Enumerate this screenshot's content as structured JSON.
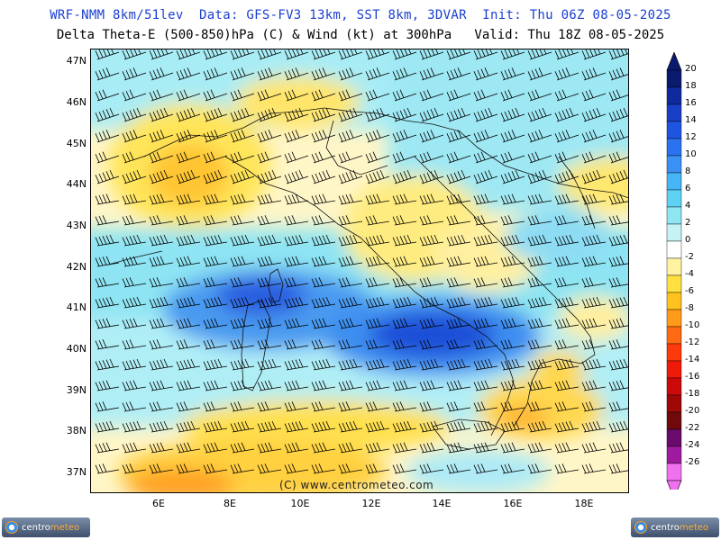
{
  "header": {
    "line1": "WRF-NMM 8km/51lev  Data: GFS-FV3 13km, SST 8km, 3DVAR  Init: Thu 06Z 08-05-2025",
    "line2": "Delta Theta-E (500-850)hPa (C) & Wind (kt) at 300hPa   Valid: Thu 18Z 08-05-2025"
  },
  "map": {
    "lat_labels": [
      "47N",
      "46N",
      "45N",
      "44N",
      "43N",
      "42N",
      "41N",
      "40N",
      "39N",
      "38N",
      "37N"
    ],
    "lon_labels": [
      "6E",
      "8E",
      "10E",
      "12E",
      "14E",
      "16E",
      "18E"
    ],
    "copyright": "(C) www.centrometeo.com"
  },
  "colorbar": {
    "labels": [
      "20",
      "18",
      "16",
      "14",
      "12",
      "10",
      "8",
      "6",
      "4",
      "2",
      "0",
      "-2",
      "-4",
      "-6",
      "-8",
      "-10",
      "-12",
      "-14",
      "-16",
      "-18",
      "-20",
      "-22",
      "-24",
      "-26"
    ],
    "colors": [
      "#0a1a6e",
      "#0f2a9e",
      "#1a3fc7",
      "#1e55e0",
      "#2a72f0",
      "#3a90f5",
      "#45b5f5",
      "#5ed2f2",
      "#8ee6f2",
      "#c6f2f5",
      "#ffffff",
      "#fff2a0",
      "#ffe040",
      "#ffc21e",
      "#ff9a1a",
      "#ff6a12",
      "#ff3a0a",
      "#f01a0a",
      "#cc0a0a",
      "#a00808",
      "#700a0a",
      "#6a0a6a",
      "#a01aa0",
      "#f070f0"
    ]
  },
  "logos": {
    "left": {
      "text_a": "centro",
      "text_b": "meteo"
    },
    "right": {
      "text_a": "centro",
      "text_b": "meteo"
    }
  }
}
